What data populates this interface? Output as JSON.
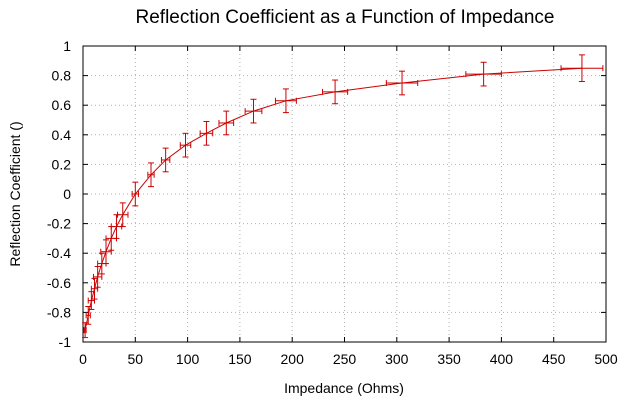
{
  "chart_data": {
    "type": "line",
    "title": "Reflection Coefficient as a Function of Impedance",
    "xlabel": "Impedance (Ohms)",
    "ylabel": "Reflection Coefficient ()",
    "xlim": [
      0,
      500
    ],
    "ylim": [
      -1,
      1
    ],
    "xticks": [
      "0",
      "50",
      "100",
      "150",
      "200",
      "250",
      "300",
      "350",
      "400",
      "450",
      "500"
    ],
    "yticks": [
      "-1",
      "-0.8",
      "-0.6",
      "-0.4",
      "-0.2",
      "0",
      "0.2",
      "0.4",
      "0.6",
      "0.8",
      "1"
    ],
    "grid": true,
    "series_color": "#cc0000",
    "series": [
      {
        "x": [
          2,
          5,
          8,
          11,
          14,
          18,
          22,
          27,
          32,
          38,
          50,
          65,
          79,
          98,
          118,
          137,
          163,
          194,
          241,
          305,
          383,
          477
        ],
        "y": [
          -0.92,
          -0.82,
          -0.72,
          -0.64,
          -0.56,
          -0.47,
          -0.39,
          -0.3,
          -0.22,
          -0.14,
          0.0,
          0.13,
          0.23,
          0.33,
          0.41,
          0.48,
          0.56,
          0.63,
          0.69,
          0.75,
          0.81,
          0.85
        ],
        "xerr": [
          1,
          2,
          3,
          3,
          4,
          4,
          5,
          5,
          5,
          5,
          3,
          3,
          4,
          5,
          6,
          7,
          8,
          10,
          12,
          15,
          17,
          20
        ],
        "yerr": [
          0.05,
          0.06,
          0.06,
          0.07,
          0.07,
          0.07,
          0.08,
          0.08,
          0.08,
          0.08,
          0.08,
          0.08,
          0.08,
          0.08,
          0.08,
          0.08,
          0.08,
          0.08,
          0.08,
          0.08,
          0.08,
          0.09
        ]
      }
    ]
  }
}
